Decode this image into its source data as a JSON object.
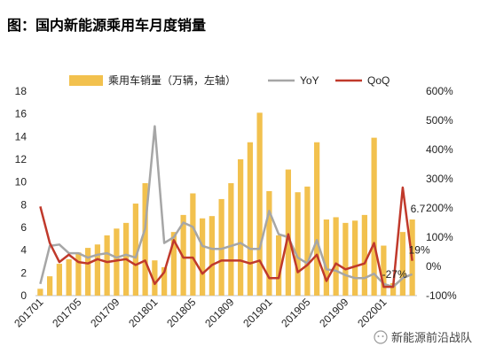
{
  "title": "图：国内新能源乘用车月度销量",
  "watermark": "新能源前沿战队",
  "chart_data": {
    "type": "bar",
    "legend": {
      "placement": "top",
      "entries": [
        {
          "key": "bars",
          "label": "乘用车销量（万辆，左轴）"
        },
        {
          "key": "yoy",
          "label": "YoY"
        },
        {
          "key": "qoq",
          "label": "QoQ"
        }
      ]
    },
    "left_axis": {
      "min": 0,
      "max": 18,
      "ticks": [
        "0",
        "2",
        "4",
        "6",
        "8",
        "10",
        "12",
        "14",
        "16",
        "18"
      ]
    },
    "right_axis": {
      "min": -100,
      "max": 600,
      "ticks": [
        "-100%",
        "0%",
        "100%",
        "200%",
        "300%",
        "400%",
        "500%",
        "600%"
      ]
    },
    "x_labels": [
      "201701",
      "201705",
      "201709",
      "201801",
      "201805",
      "201809",
      "201901",
      "201905",
      "201909",
      "202001"
    ],
    "x_label_every": 4,
    "categories": [
      "201701",
      "201702",
      "201703",
      "201704",
      "201705",
      "201706",
      "201707",
      "201708",
      "201709",
      "201710",
      "201711",
      "201712",
      "201801",
      "201802",
      "201803",
      "201804",
      "201805",
      "201806",
      "201807",
      "201808",
      "201809",
      "201810",
      "201811",
      "201812",
      "201901",
      "201902",
      "201903",
      "201904",
      "201905",
      "201906",
      "201907",
      "201908",
      "201909",
      "201910",
      "201911",
      "201912",
      "202001",
      "202002",
      "202003",
      "202004"
    ],
    "series": [
      {
        "key": "bars",
        "type": "bar",
        "axis": "left",
        "color": "#f2c14e",
        "values": [
          0.6,
          1.7,
          2.8,
          3.2,
          3.8,
          4.2,
          4.5,
          5.3,
          5.9,
          6.4,
          8.1,
          9.9,
          3.1,
          2.5,
          5.6,
          7.1,
          9.0,
          6.8,
          7.0,
          8.5,
          9.9,
          12.0,
          13.5,
          16.1,
          9.2,
          5.3,
          11.1,
          9.1,
          9.6,
          13.5,
          6.7,
          6.9,
          6.4,
          6.6,
          7.1,
          13.9,
          4.4,
          1.1,
          5.6,
          6.7
        ]
      },
      {
        "key": "yoy",
        "type": "line",
        "axis": "right",
        "color": "#a6a6a6",
        "values": [
          -60,
          70,
          75,
          45,
          45,
          30,
          40,
          45,
          30,
          40,
          30,
          130,
          480,
          80,
          100,
          150,
          135,
          70,
          60,
          60,
          70,
          80,
          60,
          60,
          190,
          110,
          100,
          30,
          10,
          90,
          -10,
          -15,
          -30,
          -40,
          -40,
          -25,
          -60,
          -70,
          -40,
          -27
        ]
      },
      {
        "key": "qoq",
        "type": "line",
        "axis": "right",
        "color": "#c0392b",
        "values": [
          205,
          80,
          15,
          40,
          15,
          10,
          25,
          15,
          20,
          25,
          5,
          20,
          -60,
          -20,
          90,
          30,
          30,
          -25,
          5,
          20,
          20,
          20,
          10,
          20,
          -40,
          -40,
          110,
          -20,
          5,
          40,
          -50,
          10,
          -10,
          0,
          10,
          80,
          -70,
          -70,
          270,
          19
        ]
      }
    ],
    "annotations": [
      {
        "text": "6.7",
        "series": "bars",
        "index": 39
      },
      {
        "text": "19%",
        "series": "qoq",
        "index": 39
      },
      {
        "text": "-27%",
        "series": "yoy",
        "index": 39
      }
    ]
  }
}
